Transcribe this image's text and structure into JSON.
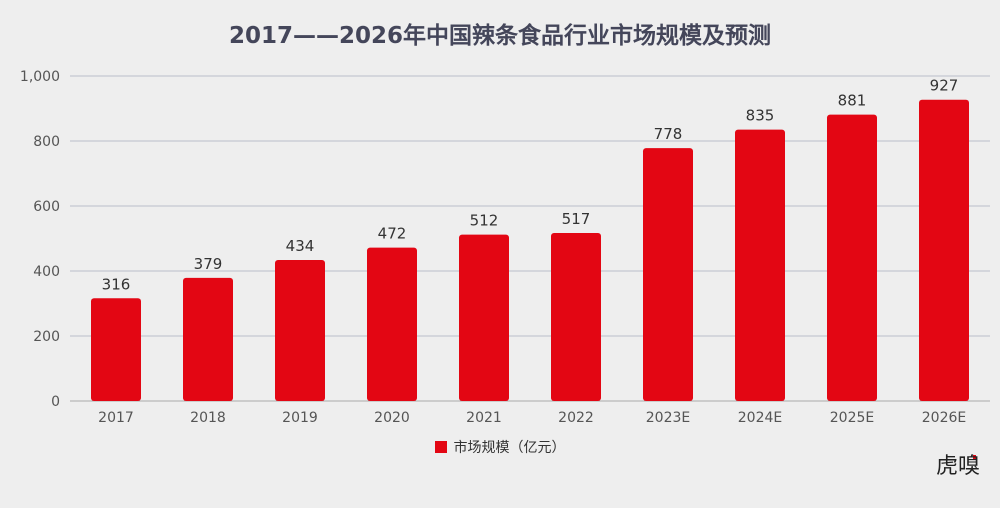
{
  "chart_data": {
    "type": "bar",
    "title": "2017——2026年中国辣条食品行业市场规模及预测",
    "categories": [
      "2017",
      "2018",
      "2019",
      "2020",
      "2021",
      "2022",
      "2023E",
      "2024E",
      "2025E",
      "2026E"
    ],
    "series": [
      {
        "name": "市场规模（亿元）",
        "values": [
          316,
          379,
          434,
          472,
          512,
          517,
          778,
          835,
          881,
          927
        ]
      }
    ],
    "data_labels": [
      "316",
      "379",
      "434",
      "472",
      "512",
      "517",
      "778",
      "835",
      "881",
      "927"
    ],
    "ylim": [
      0,
      1000
    ],
    "yticks": [
      0,
      200,
      400,
      600,
      800,
      1000
    ],
    "ytick_labels": [
      "0",
      "200",
      "400",
      "600",
      "800",
      "1,000"
    ],
    "xlabel": "",
    "ylabel": "",
    "grid": true,
    "legend_position": "bottom",
    "bar_color": "#e30613"
  },
  "watermark": "虎嗅"
}
